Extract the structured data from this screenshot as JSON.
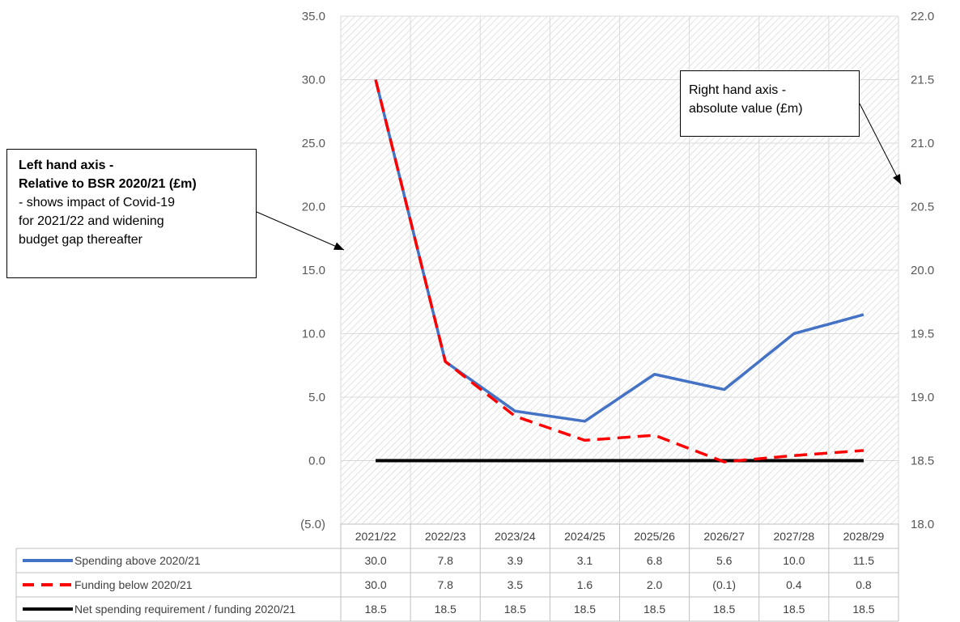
{
  "chart_data": {
    "type": "line",
    "categories": [
      "2021/22",
      "2022/23",
      "2023/24",
      "2024/25",
      "2025/26",
      "2026/27",
      "2027/28",
      "2028/29"
    ],
    "series": [
      {
        "name": "Spending above 2020/21",
        "values": [
          30.0,
          7.8,
          3.9,
          3.1,
          6.8,
          5.6,
          10.0,
          11.5
        ],
        "labels": [
          "30.0",
          "7.8",
          "3.9",
          "3.1",
          "6.8",
          "5.6",
          "10.0",
          "11.5"
        ],
        "color": "#4472C4",
        "style": "solid",
        "axis": "left"
      },
      {
        "name": "Funding below 2020/21",
        "values": [
          30.0,
          7.8,
          3.5,
          1.6,
          2.0,
          -0.1,
          0.4,
          0.8
        ],
        "labels": [
          "30.0",
          "7.8",
          "3.5",
          "1.6",
          "2.0",
          "(0.1)",
          "0.4",
          "0.8"
        ],
        "color": "#FF0000",
        "style": "dashed",
        "axis": "left"
      },
      {
        "name": "Net spending requirement / funding 2020/21",
        "values": [
          18.5,
          18.5,
          18.5,
          18.5,
          18.5,
          18.5,
          18.5,
          18.5
        ],
        "labels": [
          "18.5",
          "18.5",
          "18.5",
          "18.5",
          "18.5",
          "18.5",
          "18.5",
          "18.5"
        ],
        "color": "#000000",
        "style": "solid",
        "axis": "right"
      }
    ],
    "y_left": {
      "ylim": [
        -5,
        35
      ],
      "ticks": [
        "(5.0)",
        "0.0",
        "5.0",
        "10.0",
        "15.0",
        "20.0",
        "25.0",
        "30.0",
        "35.0"
      ]
    },
    "y_right": {
      "ylim": [
        18,
        22
      ],
      "ticks": [
        "18.0",
        "18.5",
        "19.0",
        "19.5",
        "20.0",
        "20.5",
        "21.0",
        "21.5",
        "22.0"
      ]
    },
    "grid": true,
    "legend": "data-table-below"
  },
  "annotations": {
    "left_axis": {
      "line1": "Left hand axis -",
      "line2": "Relative to BSR 2020/21 (£m)",
      "line3": "- shows impact of Covid-19",
      "line4": "for 2021/22 and widening",
      "line5": "budget gap thereafter"
    },
    "right_axis": {
      "line1": "Right hand axis -",
      "line2": "absolute value (£m)"
    }
  }
}
